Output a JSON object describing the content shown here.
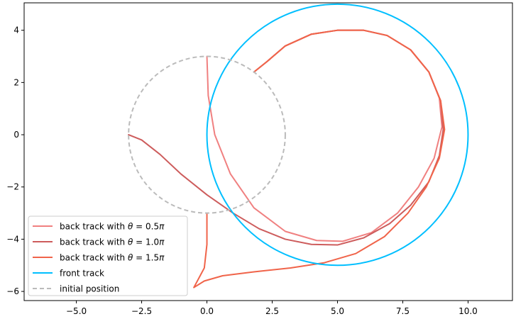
{
  "chart_data": {
    "type": "line",
    "title": "",
    "xlabel": "",
    "ylabel": "",
    "xlim": [
      -7.0,
      11.7
    ],
    "ylim": [
      -6.35,
      5.05
    ],
    "grid": false,
    "legend_position": "lower-left",
    "x_ticks": [
      -5.0,
      -2.5,
      0.0,
      2.5,
      5.0,
      7.5,
      10.0
    ],
    "x_tick_labels": [
      "−5.0",
      "−2.5",
      "0.0",
      "2.5",
      "5.0",
      "7.5",
      "10.0"
    ],
    "y_ticks": [
      4,
      2,
      0,
      -2,
      -4,
      -6
    ],
    "y_tick_labels": [
      "4",
      "2",
      "0",
      "−2",
      "−4",
      "−6"
    ],
    "series": [
      {
        "name": "back track with θ = 0.5π",
        "label_prefix": "back track with ",
        "label_theta": "θ",
        "label_eq": " = ",
        "label_value": "0.5",
        "label_pi": "π",
        "color": "#f08080",
        "dash": "",
        "points": [
          [
            0.0,
            3.0
          ],
          [
            0.05,
            1.5
          ],
          [
            0.3,
            0.0
          ],
          [
            0.9,
            -1.5
          ],
          [
            1.8,
            -2.8
          ],
          [
            3.0,
            -3.7
          ],
          [
            4.2,
            -4.05
          ],
          [
            5.2,
            -4.08
          ],
          [
            6.3,
            -3.75
          ],
          [
            7.3,
            -3.0
          ],
          [
            8.1,
            -2.0
          ],
          [
            8.7,
            -0.9
          ],
          [
            9.0,
            0.3
          ],
          [
            8.9,
            1.4
          ],
          [
            8.5,
            2.4
          ],
          [
            7.8,
            3.25
          ],
          [
            6.9,
            3.8
          ],
          [
            6.0,
            4.0
          ],
          [
            5.0,
            4.0
          ],
          [
            4.0,
            3.85
          ],
          [
            3.0,
            3.4
          ],
          [
            2.3,
            2.8
          ],
          [
            1.8,
            2.4
          ]
        ]
      },
      {
        "name": "back track with θ = 1.0π",
        "label_prefix": "back track with ",
        "label_theta": "θ",
        "label_eq": " = ",
        "label_value": "1.0",
        "label_pi": "π",
        "color": "#cd5c5c",
        "dash": "",
        "points": [
          [
            -3.0,
            0.0
          ],
          [
            -2.5,
            -0.2
          ],
          [
            -1.8,
            -0.75
          ],
          [
            -1.0,
            -1.5
          ],
          [
            0.0,
            -2.3
          ],
          [
            1.0,
            -3.0
          ],
          [
            2.0,
            -3.6
          ],
          [
            3.0,
            -4.0
          ],
          [
            4.0,
            -4.2
          ],
          [
            5.0,
            -4.22
          ],
          [
            6.0,
            -3.95
          ],
          [
            7.0,
            -3.4
          ],
          [
            7.8,
            -2.7
          ],
          [
            8.5,
            -1.8
          ],
          [
            8.9,
            -0.8
          ],
          [
            9.05,
            0.2
          ],
          [
            8.95,
            1.3
          ],
          [
            8.5,
            2.4
          ],
          [
            7.8,
            3.25
          ],
          [
            6.9,
            3.8
          ],
          [
            6.0,
            4.0
          ],
          [
            5.0,
            4.0
          ],
          [
            4.0,
            3.85
          ],
          [
            3.0,
            3.4
          ],
          [
            2.3,
            2.8
          ],
          [
            1.8,
            2.4
          ]
        ]
      },
      {
        "name": "back track with θ = 1.5π",
        "label_prefix": "back track with ",
        "label_theta": "θ",
        "label_eq": " = ",
        "label_value": "1.5",
        "label_pi": "π",
        "color": "#f0644a",
        "dash": "",
        "points": [
          [
            0.0,
            -3.0
          ],
          [
            0.0,
            -4.2
          ],
          [
            -0.1,
            -5.1
          ],
          [
            -0.5,
            -5.85
          ],
          [
            -0.1,
            -5.6
          ],
          [
            0.6,
            -5.4
          ],
          [
            1.8,
            -5.25
          ],
          [
            3.2,
            -5.1
          ],
          [
            4.5,
            -4.9
          ],
          [
            5.7,
            -4.55
          ],
          [
            6.8,
            -3.9
          ],
          [
            7.7,
            -3.0
          ],
          [
            8.4,
            -2.0
          ],
          [
            8.9,
            -0.9
          ],
          [
            9.1,
            0.2
          ],
          [
            8.95,
            1.3
          ],
          [
            8.5,
            2.4
          ],
          [
            7.8,
            3.25
          ],
          [
            6.9,
            3.8
          ],
          [
            6.0,
            4.0
          ],
          [
            5.0,
            4.0
          ],
          [
            4.0,
            3.85
          ],
          [
            3.0,
            3.4
          ],
          [
            2.3,
            2.8
          ],
          [
            1.8,
            2.4
          ]
        ]
      },
      {
        "name": "front track",
        "label_prefix": "front track",
        "color": "#00bfff",
        "dash": "",
        "circle": {
          "cx": 5.0,
          "cy": 0.0,
          "r": 5.0
        }
      },
      {
        "name": "initial position",
        "label_prefix": "initial position",
        "color": "#bbbbbb",
        "dash": "6,4",
        "circle": {
          "cx": 0.0,
          "cy": 0.0,
          "r": 3.0
        }
      }
    ]
  }
}
